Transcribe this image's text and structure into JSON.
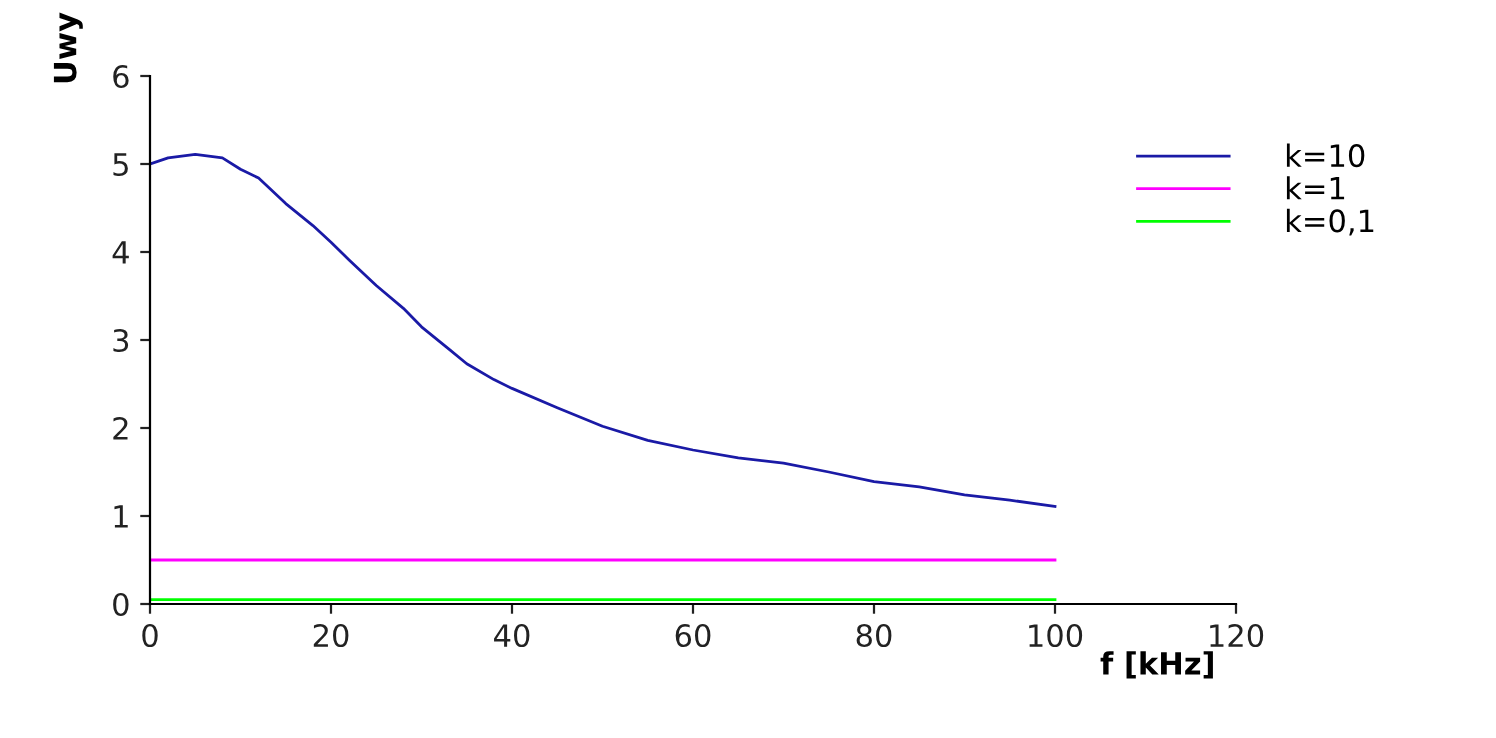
{
  "chart_data": {
    "type": "line",
    "xlabel": "f [kHz]",
    "ylabel": "Uwy",
    "xlim": [
      0,
      120
    ],
    "xticks": [
      0,
      20,
      40,
      60,
      80,
      100,
      120
    ],
    "ylim": [
      0,
      6
    ],
    "yticks": [
      0,
      1,
      2,
      3,
      4,
      5,
      6
    ],
    "grid": false,
    "legend": "top right",
    "marker": "none",
    "line_style": "solid",
    "series": [
      {
        "name": "k=10",
        "color": "#1a1aa6",
        "x": [
          0,
          2,
          5,
          8,
          10,
          12,
          15,
          18,
          20,
          22,
          25,
          28,
          30,
          33,
          35,
          38,
          40,
          45,
          50,
          55,
          60,
          65,
          70,
          75,
          80,
          85,
          90,
          95,
          100
        ],
        "values": [
          5.0,
          5.07,
          5.11,
          5.07,
          4.94,
          4.84,
          4.55,
          4.3,
          4.11,
          3.91,
          3.62,
          3.36,
          3.15,
          2.9,
          2.73,
          2.55,
          2.45,
          2.23,
          2.02,
          1.86,
          1.75,
          1.66,
          1.6,
          1.5,
          1.39,
          1.33,
          1.24,
          1.18,
          1.11
        ]
      },
      {
        "name": "k=1",
        "color": "#ff00ff",
        "x": [
          0,
          100
        ],
        "values": [
          0.5,
          0.5
        ]
      },
      {
        "name": "k=0,1",
        "color": "#00ff00",
        "x": [
          0,
          100
        ],
        "values": [
          0.05,
          0.05
        ]
      }
    ]
  }
}
